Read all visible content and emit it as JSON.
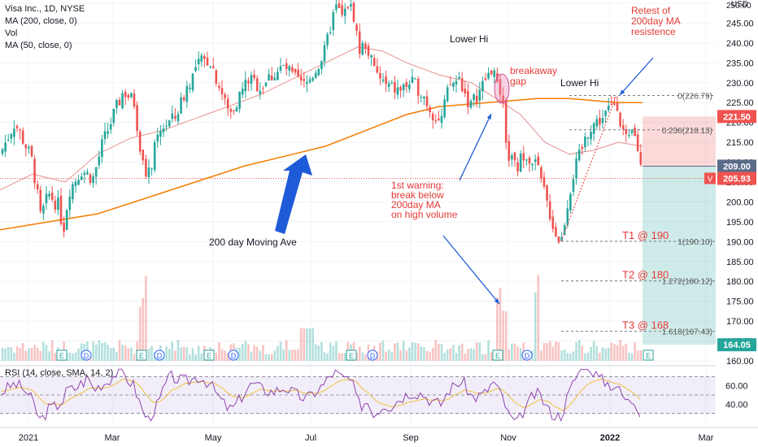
{
  "legend": {
    "symbol": "Visa Inc., 1D, NYSE",
    "ma200": "MA (200, close, 0)",
    "vol": "Vol",
    "ma50": "MA (50, close, 0)"
  },
  "rsi_legend": "RSI (14, close, SMA, 14, 2)",
  "currency": "USD",
  "colors": {
    "up": "#26a69a",
    "down": "#ef5350",
    "ma200": "#f57c00",
    "ma50": "#e57373",
    "rsi": "#8e44ad",
    "rsi_ma": "#f0c040",
    "annotation_red": "#e53935",
    "arrow_blue": "#1e5bd8",
    "axis_text": "#131722"
  },
  "chart_data": {
    "type": "candlestick",
    "price_axis": {
      "ticks": [
        160,
        165,
        170,
        175,
        180,
        185,
        190,
        195,
        200,
        205,
        210,
        215,
        220,
        225,
        230,
        235,
        240,
        245,
        250
      ],
      "top_label": "250.00"
    },
    "x_ticks": [
      "2021",
      "Mar",
      "May",
      "Jul",
      "Sep",
      "Nov",
      "2022",
      "Mar"
    ],
    "price_path": [
      [
        0,
        212
      ],
      [
        18,
        220
      ],
      [
        30,
        215
      ],
      [
        40,
        210
      ],
      [
        50,
        196
      ],
      [
        60,
        202
      ],
      [
        72,
        199
      ],
      [
        78,
        193
      ],
      [
        85,
        203
      ],
      [
        100,
        208
      ],
      [
        115,
        206
      ],
      [
        125,
        214
      ],
      [
        140,
        222
      ],
      [
        152,
        228
      ],
      [
        165,
        225
      ],
      [
        175,
        210
      ],
      [
        182,
        206
      ],
      [
        190,
        213
      ],
      [
        200,
        219
      ],
      [
        215,
        221
      ],
      [
        230,
        229
      ],
      [
        245,
        235
      ],
      [
        258,
        236
      ],
      [
        270,
        229
      ],
      [
        282,
        222
      ],
      [
        295,
        227
      ],
      [
        305,
        231
      ],
      [
        320,
        229
      ],
      [
        335,
        232
      ],
      [
        350,
        234
      ],
      [
        362,
        231
      ],
      [
        375,
        229
      ],
      [
        390,
        234
      ],
      [
        400,
        238
      ],
      [
        408,
        246
      ],
      [
        414,
        249
      ],
      [
        422,
        246
      ],
      [
        428,
        250
      ],
      [
        435,
        247
      ],
      [
        442,
        238
      ],
      [
        450,
        240
      ],
      [
        460,
        233
      ],
      [
        475,
        229
      ],
      [
        490,
        228
      ],
      [
        505,
        230
      ],
      [
        518,
        228
      ],
      [
        530,
        223
      ],
      [
        542,
        220
      ],
      [
        552,
        229
      ],
      [
        565,
        231
      ],
      [
        578,
        224
      ],
      [
        590,
        228
      ],
      [
        600,
        232
      ],
      [
        607,
        234
      ],
      [
        612,
        228
      ],
      [
        618,
        224
      ],
      [
        625,
        212
      ],
      [
        635,
        208
      ],
      [
        645,
        213
      ],
      [
        660,
        209
      ],
      [
        668,
        203
      ],
      [
        675,
        198
      ],
      [
        683,
        192
      ],
      [
        690,
        190
      ],
      [
        697,
        199
      ],
      [
        705,
        207
      ],
      [
        715,
        213
      ],
      [
        725,
        219
      ],
      [
        740,
        221
      ],
      [
        752,
        224
      ],
      [
        758,
        226
      ],
      [
        764,
        219
      ],
      [
        772,
        214
      ],
      [
        778,
        218
      ],
      [
        785,
        213
      ],
      [
        790,
        206
      ]
    ],
    "ma200_path": [
      [
        0,
        193
      ],
      [
        60,
        195
      ],
      [
        120,
        197
      ],
      [
        180,
        201
      ],
      [
        240,
        205
      ],
      [
        300,
        209
      ],
      [
        360,
        212
      ],
      [
        400,
        214
      ],
      [
        450,
        218
      ],
      [
        500,
        222
      ],
      [
        540,
        224
      ],
      [
        600,
        225
      ],
      [
        660,
        226
      ],
      [
        700,
        226
      ],
      [
        760,
        225
      ],
      [
        790,
        225
      ]
    ],
    "ma50_path": [
      [
        0,
        203
      ],
      [
        40,
        207
      ],
      [
        80,
        205
      ],
      [
        120,
        212
      ],
      [
        160,
        216
      ],
      [
        200,
        218
      ],
      [
        240,
        221
      ],
      [
        280,
        224
      ],
      [
        320,
        227
      ],
      [
        360,
        231
      ],
      [
        400,
        235
      ],
      [
        440,
        239
      ],
      [
        470,
        238
      ],
      [
        500,
        235
      ],
      [
        540,
        232
      ],
      [
        580,
        230
      ],
      [
        610,
        226
      ],
      [
        640,
        222
      ],
      [
        670,
        215
      ],
      [
        700,
        212
      ],
      [
        730,
        213
      ],
      [
        760,
        215
      ],
      [
        790,
        214
      ]
    ],
    "current_price": "205.93",
    "current_price_tag": "V",
    "labels_right": [
      {
        "value": 221.5,
        "text": "221.50",
        "color": "#ef5350"
      },
      {
        "value": 209.0,
        "text": "209.00",
        "color": "#5b6b8a"
      },
      {
        "value": 205.93,
        "text": "205.93",
        "color": "#ef5350"
      },
      {
        "value": 164.05,
        "text": "164.05",
        "color": "#26a69a"
      }
    ],
    "fib_levels": [
      {
        "value": 226.79,
        "text": "0(226.79)"
      },
      {
        "value": 218.13,
        "text": "0.236(218.13)"
      },
      {
        "value": 190.1,
        "text": "1(190.10)"
      },
      {
        "value": 180.12,
        "text": "1.272(180.12)"
      },
      {
        "value": 167.43,
        "text": "1.618(167.43)"
      }
    ],
    "targets": [
      {
        "value": 190.1,
        "text": "T1 @ 190"
      },
      {
        "value": 180.12,
        "text": "T2 @ 180"
      },
      {
        "value": 167.43,
        "text": "T3 @ 168"
      }
    ],
    "short_position": {
      "entry": 209.0,
      "stop": 221.5,
      "target": 164.05
    },
    "annotations": [
      {
        "id": "lower-hi-1",
        "text": "Lower Hi"
      },
      {
        "id": "lower-hi-2",
        "text": "Lower Hi"
      },
      {
        "id": "breakaway-gap",
        "lines": [
          "breakaway",
          "gap"
        ]
      },
      {
        "id": "retest",
        "lines": [
          "Retest of",
          "200day MA",
          "resistence"
        ]
      },
      {
        "id": "first-warning",
        "lines": [
          "1st warning:",
          "break below",
          "200day MA",
          "on high volume"
        ]
      },
      {
        "id": "ma200-label",
        "text": "200 day Moving Ave"
      }
    ],
    "events": [
      "E",
      "D",
      "E",
      "D",
      "E",
      "D",
      "E",
      "D",
      "E",
      "D",
      "E"
    ],
    "rsi_axis": {
      "ticks": [
        40,
        60
      ],
      "tick_labels": [
        "40.00",
        "60.00"
      ]
    }
  }
}
